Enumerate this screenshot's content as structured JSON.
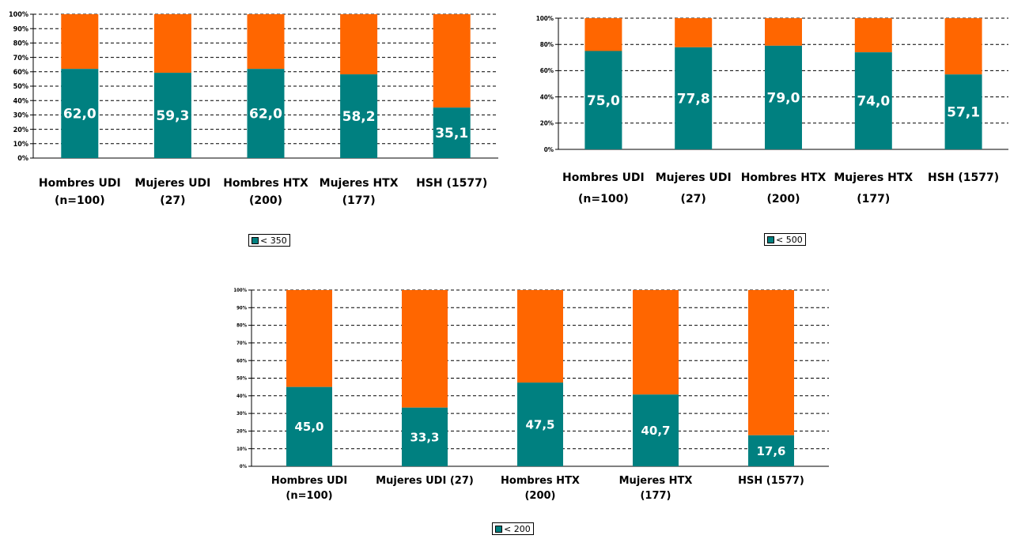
{
  "colors": {
    "primary": "#008080",
    "secondary": "#ff6600",
    "grid": "#000000"
  },
  "chart_data": [
    {
      "type": "bar",
      "stacked": true,
      "categories": [
        [
          "Hombres UDI",
          "(n=100)"
        ],
        [
          "Mujeres UDI",
          "(27)"
        ],
        [
          "Hombres HTX",
          "(200)"
        ],
        [
          "Mujeres HTX",
          "(177)"
        ],
        [
          "HSH (1577)"
        ]
      ],
      "series": [
        {
          "name": "< 350",
          "values": [
            62.0,
            59.3,
            62.0,
            58.2,
            35.1
          ]
        }
      ],
      "value_labels": [
        "62,0",
        "59,3",
        "62,0",
        "58,2",
        "35,1"
      ],
      "y_ticks": [
        "0%",
        "10%",
        "20%",
        "30%",
        "40%",
        "50%",
        "60%",
        "70%",
        "80%",
        "90%",
        "100%"
      ],
      "ylim": [
        0,
        100
      ],
      "grid": true,
      "legend_label": "< 350"
    },
    {
      "type": "bar",
      "stacked": true,
      "categories": [
        [
          "Hombres UDI",
          "(n=100)"
        ],
        [
          "Mujeres UDI",
          "(27)"
        ],
        [
          "Hombres HTX",
          "(200)"
        ],
        [
          "Mujeres HTX",
          "(177)"
        ],
        [
          "HSH (1577)"
        ]
      ],
      "series": [
        {
          "name": "< 500",
          "values": [
            75.0,
            77.8,
            79.0,
            74.0,
            57.1
          ]
        }
      ],
      "value_labels": [
        "75,0",
        "77,8",
        "79,0",
        "74,0",
        "57,1"
      ],
      "y_ticks": [
        "0%",
        "20%",
        "40%",
        "60%",
        "80%",
        "100%"
      ],
      "ylim": [
        0,
        100
      ],
      "grid": true,
      "legend_label": "< 500"
    },
    {
      "type": "bar",
      "stacked": true,
      "categories": [
        [
          "Hombres UDI",
          "(n=100)"
        ],
        [
          "Mujeres UDI (27)"
        ],
        [
          "Hombres HTX",
          "(200)"
        ],
        [
          "Mujeres HTX",
          "(177)"
        ],
        [
          "HSH (1577)"
        ]
      ],
      "series": [
        {
          "name": "< 200",
          "values": [
            45.0,
            33.3,
            47.5,
            40.7,
            17.6
          ]
        }
      ],
      "value_labels": [
        "45,0",
        "33,3",
        "47,5",
        "40,7",
        "17,6"
      ],
      "y_ticks": [
        "0%",
        "10%",
        "20%",
        "30%",
        "40%",
        "50%",
        "60%",
        "70%",
        "80%",
        "90%",
        "100%"
      ],
      "ylim": [
        0,
        100
      ],
      "grid": true,
      "legend_label": "< 200"
    }
  ]
}
